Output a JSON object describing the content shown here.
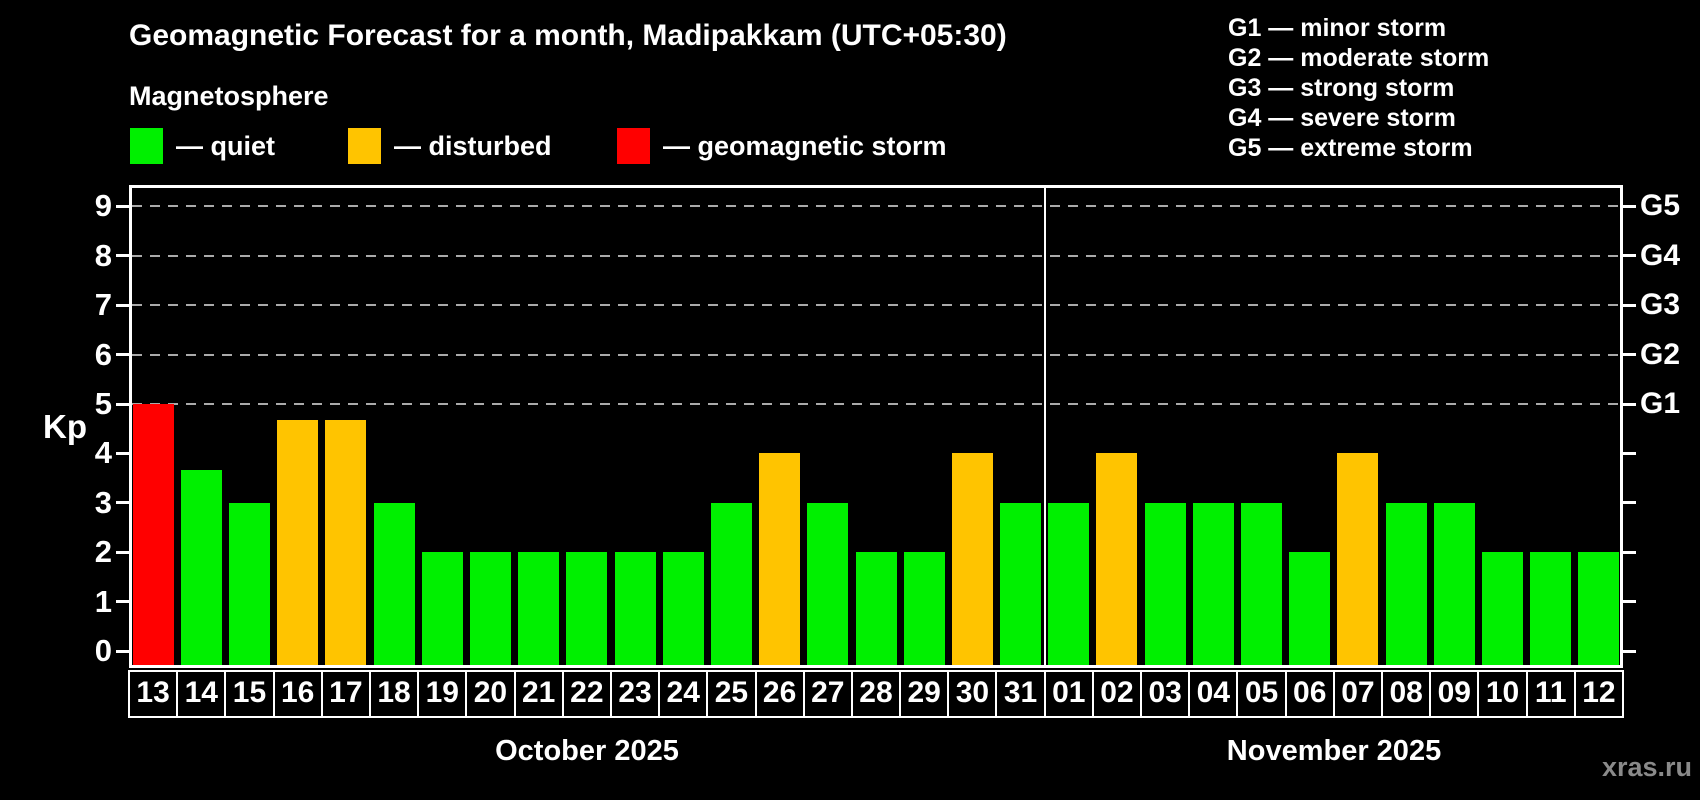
{
  "header": {
    "title": "Geomagnetic Forecast for a month, Madipakkam (UTC+05:30)",
    "subtitle": "Magnetosphere"
  },
  "legend": {
    "quiet": "— quiet",
    "disturbed": "— disturbed",
    "storm": "— geomagnetic storm"
  },
  "g_legend": [
    "G1 — minor storm",
    "G2 — moderate storm",
    "G3 — strong storm",
    "G4 — severe storm",
    "G5 — extreme storm"
  ],
  "colors": {
    "quiet": "#00f000",
    "disturbed": "#ffc400",
    "storm": "#ff0000",
    "axis": "#ffffff",
    "grid": "#aaaaaa",
    "watermark": "#8a8a8a",
    "background": "#000000"
  },
  "watermark": "xras.ru",
  "chart_data": {
    "type": "bar",
    "title": "Geomagnetic Forecast for a month, Madipakkam (UTC+05:30)",
    "ylabel": "Kp",
    "ylim": [
      0,
      9.35
    ],
    "yticks": [
      0,
      1,
      2,
      3,
      4,
      5,
      6,
      7,
      8,
      9
    ],
    "gridlines_at": [
      5,
      6,
      7,
      8,
      9
    ],
    "gridline_style": "dashed",
    "legend_position": "top-left",
    "right_axis": [
      {
        "kp": 5,
        "label": "G1"
      },
      {
        "kp": 6,
        "label": "G2"
      },
      {
        "kp": 7,
        "label": "G3"
      },
      {
        "kp": 8,
        "label": "G4"
      },
      {
        "kp": 9,
        "label": "G5"
      }
    ],
    "months": [
      {
        "label": "October 2025",
        "days": [
          {
            "date": "13",
            "kp": 5.0,
            "status": "storm"
          },
          {
            "date": "14",
            "kp": 3.67,
            "status": "quiet"
          },
          {
            "date": "15",
            "kp": 3.0,
            "status": "quiet"
          },
          {
            "date": "16",
            "kp": 4.67,
            "status": "disturbed"
          },
          {
            "date": "17",
            "kp": 4.67,
            "status": "disturbed"
          },
          {
            "date": "18",
            "kp": 3.0,
            "status": "quiet"
          },
          {
            "date": "19",
            "kp": 2.0,
            "status": "quiet"
          },
          {
            "date": "20",
            "kp": 2.0,
            "status": "quiet"
          },
          {
            "date": "21",
            "kp": 2.0,
            "status": "quiet"
          },
          {
            "date": "22",
            "kp": 2.0,
            "status": "quiet"
          },
          {
            "date": "23",
            "kp": 2.0,
            "status": "quiet"
          },
          {
            "date": "24",
            "kp": 2.0,
            "status": "quiet"
          },
          {
            "date": "25",
            "kp": 3.0,
            "status": "quiet"
          },
          {
            "date": "26",
            "kp": 4.0,
            "status": "disturbed"
          },
          {
            "date": "27",
            "kp": 3.0,
            "status": "quiet"
          },
          {
            "date": "28",
            "kp": 2.0,
            "status": "quiet"
          },
          {
            "date": "29",
            "kp": 2.0,
            "status": "quiet"
          },
          {
            "date": "30",
            "kp": 4.0,
            "status": "disturbed"
          },
          {
            "date": "31",
            "kp": 3.0,
            "status": "quiet"
          }
        ]
      },
      {
        "label": "November 2025",
        "days": [
          {
            "date": "01",
            "kp": 3.0,
            "status": "quiet"
          },
          {
            "date": "02",
            "kp": 4.0,
            "status": "disturbed"
          },
          {
            "date": "03",
            "kp": 3.0,
            "status": "quiet"
          },
          {
            "date": "04",
            "kp": 3.0,
            "status": "quiet"
          },
          {
            "date": "05",
            "kp": 3.0,
            "status": "quiet"
          },
          {
            "date": "06",
            "kp": 2.0,
            "status": "quiet"
          },
          {
            "date": "07",
            "kp": 4.0,
            "status": "disturbed"
          },
          {
            "date": "08",
            "kp": 3.0,
            "status": "quiet"
          },
          {
            "date": "09",
            "kp": 3.0,
            "status": "quiet"
          },
          {
            "date": "10",
            "kp": 2.0,
            "status": "quiet"
          },
          {
            "date": "11",
            "kp": 2.0,
            "status": "quiet"
          },
          {
            "date": "12",
            "kp": 2.0,
            "status": "quiet"
          }
        ]
      }
    ]
  }
}
